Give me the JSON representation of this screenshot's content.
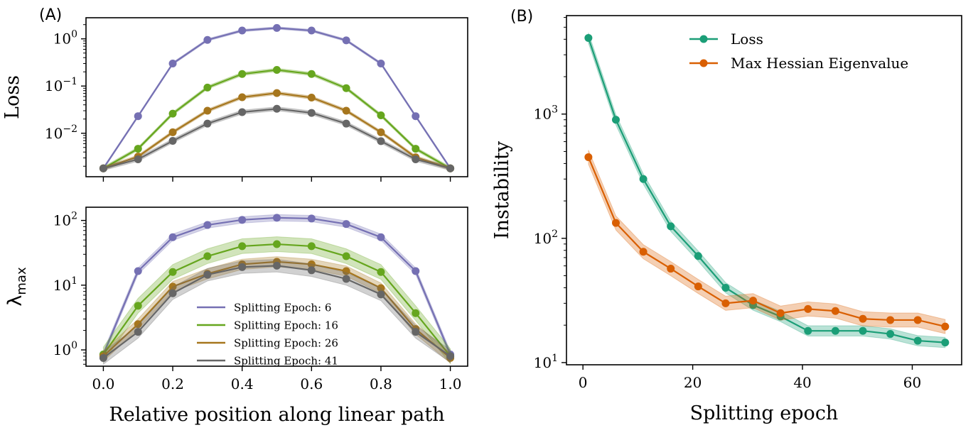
{
  "figure": {
    "panel_a_label": "(A)",
    "panel_b_label": "(B)"
  },
  "chart_data": [
    {
      "type": "line",
      "panel": "A-top",
      "xlabel": "",
      "ylabel": "Loss",
      "yscale": "log",
      "xlim": [
        -0.05,
        1.05
      ],
      "ylim": [
        0.0012,
        2.8
      ],
      "xticks": [
        0.0,
        0.2,
        0.4,
        0.6,
        0.8,
        1.0
      ],
      "yticks_exp": [
        -2,
        -1,
        0
      ],
      "x": [
        0.0,
        0.1,
        0.2,
        0.3,
        0.4,
        0.5,
        0.6,
        0.7,
        0.8,
        0.9,
        1.0
      ],
      "series": [
        {
          "name": "Splitting Epoch: 6",
          "color": "#7570b3",
          "band_rel": 0.06,
          "values": [
            0.0018,
            0.023,
            0.3,
            0.95,
            1.5,
            1.7,
            1.5,
            0.93,
            0.3,
            0.023,
            0.0018
          ]
        },
        {
          "name": "Splitting Epoch: 16",
          "color": "#66a61e",
          "band_rel": 0.08,
          "values": [
            0.0018,
            0.0047,
            0.026,
            0.093,
            0.18,
            0.22,
            0.18,
            0.09,
            0.024,
            0.0047,
            0.0018
          ]
        },
        {
          "name": "Splitting Epoch: 26",
          "color": "#a6761d",
          "band_rel": 0.08,
          "values": [
            0.0018,
            0.0032,
            0.0105,
            0.03,
            0.058,
            0.071,
            0.057,
            0.03,
            0.0105,
            0.0031,
            0.0018
          ]
        },
        {
          "name": "Splitting Epoch: 41",
          "color": "#666666",
          "band_rel": 0.1,
          "values": [
            0.0018,
            0.0028,
            0.0069,
            0.016,
            0.028,
            0.033,
            0.027,
            0.016,
            0.0068,
            0.0028,
            0.0018
          ]
        }
      ]
    },
    {
      "type": "line",
      "panel": "A-bottom",
      "xlabel": "Relative position along linear path",
      "ylabel": "λ",
      "ylabel_sub": "max",
      "yscale": "log",
      "xlim": [
        -0.05,
        1.05
      ],
      "ylim": [
        0.56,
        160
      ],
      "xticks": [
        0.0,
        0.2,
        0.4,
        0.6,
        0.8,
        1.0
      ],
      "xtick_labels": [
        "0.0",
        "0.2",
        "0.4",
        "0.6",
        "0.8",
        "1.0"
      ],
      "yticks_exp": [
        0,
        1,
        2
      ],
      "legend": "lower-center",
      "x": [
        0.0,
        0.1,
        0.2,
        0.3,
        0.4,
        0.5,
        0.6,
        0.7,
        0.8,
        0.9,
        1.0
      ],
      "series": [
        {
          "name": "Splitting Epoch: 6",
          "color": "#7570b3",
          "band_rel": 0.12,
          "values": [
            0.85,
            16.5,
            55,
            85,
            102,
            110,
            107,
            88,
            55,
            16.5,
            0.85
          ]
        },
        {
          "name": "Splitting Epoch: 16",
          "color": "#66a61e",
          "band_rel": 0.3,
          "values": [
            0.85,
            4.8,
            16,
            28,
            40,
            43,
            40,
            28,
            16,
            3.7,
            0.8
          ]
        },
        {
          "name": "Splitting Epoch: 26",
          "color": "#a6761d",
          "band_rel": 0.2,
          "values": [
            0.8,
            2.5,
            9.5,
            15,
            21,
            23,
            21,
            16.5,
            9,
            2.1,
            0.75
          ]
        },
        {
          "name": "Splitting Epoch: 41",
          "color": "#666666",
          "band_rel": 0.25,
          "values": [
            0.75,
            1.9,
            7.5,
            14.5,
            19,
            20,
            17,
            12.5,
            7.2,
            1.9,
            0.8
          ]
        }
      ]
    },
    {
      "type": "line",
      "panel": "B",
      "xlabel": "Splitting epoch",
      "ylabel": "Instability",
      "yscale": "log",
      "xlim": [
        -3,
        69
      ],
      "ylim": [
        9.6,
        6200
      ],
      "xticks": [
        0,
        20,
        40,
        60
      ],
      "xtick_labels": [
        "0",
        "20",
        "40",
        "60"
      ],
      "yticks_exp": [
        1,
        2,
        3
      ],
      "legend": "upper-right",
      "x": [
        1,
        6,
        11,
        16,
        21,
        26,
        31,
        36,
        41,
        46,
        51,
        56,
        61,
        66
      ],
      "series": [
        {
          "name": "Loss",
          "color": "#1b9e77",
          "band_rel": 0.1,
          "values": [
            4100,
            900,
            300,
            125,
            72,
            40,
            29,
            23.5,
            18,
            18,
            18,
            17,
            15,
            14.5
          ]
        },
        {
          "name": "Max Hessian Eigenvalue",
          "color": "#d95f02",
          "band_rel": 0.14,
          "values": [
            450,
            133,
            78,
            57,
            41,
            30,
            31.5,
            25,
            27,
            26,
            22.5,
            22,
            22,
            19.5
          ]
        }
      ]
    }
  ]
}
